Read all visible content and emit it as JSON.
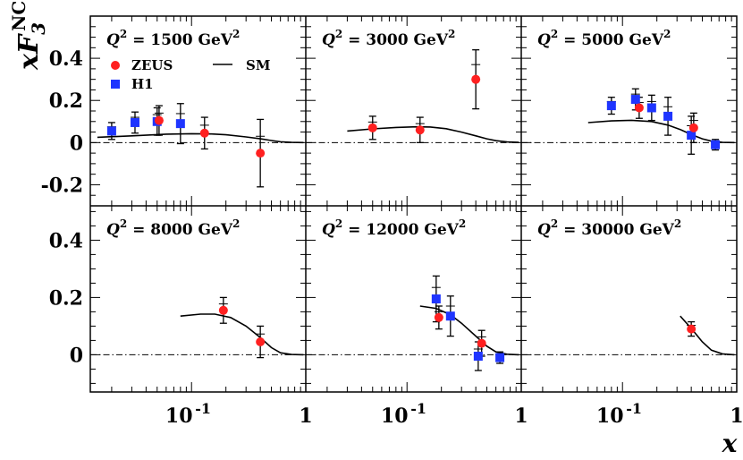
{
  "chart_data": {
    "type": "scatter",
    "title": "",
    "xlabel": "x",
    "ylabel": "xF3",
    "ylabel_superscript": "NC",
    "x_scale": "log",
    "xlim": [
      0.013,
      1
    ],
    "x_ticks": [
      "10",
      "-1",
      "1"
    ],
    "legend": {
      "placement": "top-left panel",
      "entries": [
        {
          "name": "ZEUS",
          "marker": "circle",
          "color": "#ff2020"
        },
        {
          "name": "H1",
          "marker": "square",
          "color": "#1f35ff"
        },
        {
          "name": "SM",
          "marker": "line",
          "color": "#000000"
        }
      ]
    },
    "rows": [
      {
        "ylim": [
          -0.3,
          0.6
        ],
        "y_ticks": [
          0.4,
          0.2,
          0,
          -0.2
        ],
        "y_tick_labels": [
          "0.4",
          "0.2",
          "0",
          "-0.2"
        ]
      },
      {
        "ylim": [
          -0.13,
          0.52
        ],
        "y_ticks": [
          0.4,
          0.2,
          0
        ],
        "y_tick_labels": [
          "0.4",
          "0.2",
          "0"
        ]
      }
    ],
    "panels": [
      {
        "label_pre": "Q",
        "label_mid": " = 1500 GeV",
        "label_sup": "2",
        "row": 0,
        "col": 0,
        "zeus": [
          {
            "x": 0.052,
            "y": 0.105,
            "err": 0.07
          },
          {
            "x": 0.13,
            "y": 0.045,
            "err": 0.075
          },
          {
            "x": 0.4,
            "y": -0.05,
            "err": 0.16
          }
        ],
        "h1": [
          {
            "x": 0.02,
            "y": 0.055,
            "err": 0.04
          },
          {
            "x": 0.032,
            "y": 0.095,
            "err": 0.05
          },
          {
            "x": 0.05,
            "y": 0.1,
            "err": 0.065
          },
          {
            "x": 0.08,
            "y": 0.09,
            "err": 0.095
          }
        ],
        "sm": [
          {
            "x": 0.015,
            "y": 0.025
          },
          {
            "x": 0.03,
            "y": 0.032
          },
          {
            "x": 0.06,
            "y": 0.04
          },
          {
            "x": 0.1,
            "y": 0.042
          },
          {
            "x": 0.15,
            "y": 0.041
          },
          {
            "x": 0.2,
            "y": 0.037
          },
          {
            "x": 0.3,
            "y": 0.027
          },
          {
            "x": 0.4,
            "y": 0.018
          },
          {
            "x": 0.5,
            "y": 0.01
          },
          {
            "x": 0.6,
            "y": 0.004
          },
          {
            "x": 0.75,
            "y": 0.001
          },
          {
            "x": 0.95,
            "y": 0.0
          }
        ]
      },
      {
        "label_pre": "Q",
        "label_mid": " = 3000 GeV",
        "label_sup": "2",
        "row": 0,
        "col": 1,
        "zeus": [
          {
            "x": 0.05,
            "y": 0.07,
            "err": 0.055
          },
          {
            "x": 0.13,
            "y": 0.06,
            "err": 0.06
          },
          {
            "x": 0.4,
            "y": 0.3,
            "err": 0.14
          }
        ],
        "h1": [],
        "sm": [
          {
            "x": 0.03,
            "y": 0.055
          },
          {
            "x": 0.05,
            "y": 0.065
          },
          {
            "x": 0.08,
            "y": 0.072
          },
          {
            "x": 0.12,
            "y": 0.075
          },
          {
            "x": 0.16,
            "y": 0.074
          },
          {
            "x": 0.22,
            "y": 0.066
          },
          {
            "x": 0.3,
            "y": 0.05
          },
          {
            "x": 0.4,
            "y": 0.032
          },
          {
            "x": 0.5,
            "y": 0.018
          },
          {
            "x": 0.6,
            "y": 0.009
          },
          {
            "x": 0.75,
            "y": 0.003
          },
          {
            "x": 0.95,
            "y": 0.001
          }
        ]
      },
      {
        "label_pre": "Q",
        "label_mid": " = 5000 GeV",
        "label_sup": "2",
        "row": 0,
        "col": 2,
        "zeus": [
          {
            "x": 0.14,
            "y": 0.165,
            "err": 0.05
          },
          {
            "x": 0.42,
            "y": 0.07,
            "err": 0.07
          }
        ],
        "h1": [
          {
            "x": 0.08,
            "y": 0.175,
            "err": 0.04
          },
          {
            "x": 0.13,
            "y": 0.205,
            "err": 0.05
          },
          {
            "x": 0.18,
            "y": 0.165,
            "err": 0.06
          },
          {
            "x": 0.25,
            "y": 0.125,
            "err": 0.09
          },
          {
            "x": 0.4,
            "y": 0.035,
            "err": 0.09
          },
          {
            "x": 0.65,
            "y": -0.01,
            "err": 0.025
          }
        ],
        "sm": [
          {
            "x": 0.05,
            "y": 0.095
          },
          {
            "x": 0.08,
            "y": 0.103
          },
          {
            "x": 0.12,
            "y": 0.106
          },
          {
            "x": 0.18,
            "y": 0.1
          },
          {
            "x": 0.25,
            "y": 0.083
          },
          {
            "x": 0.32,
            "y": 0.062
          },
          {
            "x": 0.4,
            "y": 0.038
          },
          {
            "x": 0.5,
            "y": 0.018
          },
          {
            "x": 0.6,
            "y": 0.007
          },
          {
            "x": 0.75,
            "y": 0.001
          },
          {
            "x": 0.95,
            "y": 0.0
          }
        ]
      },
      {
        "label_pre": "Q",
        "label_mid": " = 8000 GeV",
        "label_sup": "2",
        "row": 1,
        "col": 0,
        "zeus": [
          {
            "x": 0.19,
            "y": 0.155,
            "err": 0.045
          },
          {
            "x": 0.4,
            "y": 0.045,
            "err": 0.055
          }
        ],
        "h1": [],
        "sm": [
          {
            "x": 0.08,
            "y": 0.135
          },
          {
            "x": 0.12,
            "y": 0.142
          },
          {
            "x": 0.16,
            "y": 0.142
          },
          {
            "x": 0.22,
            "y": 0.13
          },
          {
            "x": 0.3,
            "y": 0.1
          },
          {
            "x": 0.4,
            "y": 0.06
          },
          {
            "x": 0.5,
            "y": 0.025
          },
          {
            "x": 0.6,
            "y": 0.007
          },
          {
            "x": 0.75,
            "y": 0.001
          },
          {
            "x": 0.95,
            "y": 0.0
          }
        ]
      },
      {
        "label_pre": "Q",
        "label_mid": " = 12000 GeV",
        "label_sup": "2",
        "row": 1,
        "col": 1,
        "zeus": [
          {
            "x": 0.19,
            "y": 0.13,
            "err": 0.04
          },
          {
            "x": 0.45,
            "y": 0.04,
            "err": 0.045
          }
        ],
        "h1": [
          {
            "x": 0.18,
            "y": 0.195,
            "err": 0.08
          },
          {
            "x": 0.24,
            "y": 0.135,
            "err": 0.07
          },
          {
            "x": 0.42,
            "y": -0.005,
            "err": 0.05
          },
          {
            "x": 0.65,
            "y": -0.01,
            "err": 0.02
          }
        ],
        "sm": [
          {
            "x": 0.13,
            "y": 0.17
          },
          {
            "x": 0.18,
            "y": 0.162
          },
          {
            "x": 0.24,
            "y": 0.14
          },
          {
            "x": 0.3,
            "y": 0.11
          },
          {
            "x": 0.4,
            "y": 0.065
          },
          {
            "x": 0.5,
            "y": 0.03
          },
          {
            "x": 0.6,
            "y": 0.01
          },
          {
            "x": 0.75,
            "y": 0.002
          },
          {
            "x": 0.95,
            "y": 0.0
          }
        ]
      },
      {
        "label_pre": "Q",
        "label_mid": " = 30000 GeV",
        "label_sup": "2",
        "row": 1,
        "col": 2,
        "zeus": [
          {
            "x": 0.4,
            "y": 0.09,
            "err": 0.025
          }
        ],
        "h1": [],
        "sm": [
          {
            "x": 0.32,
            "y": 0.135
          },
          {
            "x": 0.4,
            "y": 0.092
          },
          {
            "x": 0.5,
            "y": 0.045
          },
          {
            "x": 0.6,
            "y": 0.016
          },
          {
            "x": 0.75,
            "y": 0.003
          },
          {
            "x": 0.95,
            "y": 0.0
          }
        ]
      }
    ]
  }
}
